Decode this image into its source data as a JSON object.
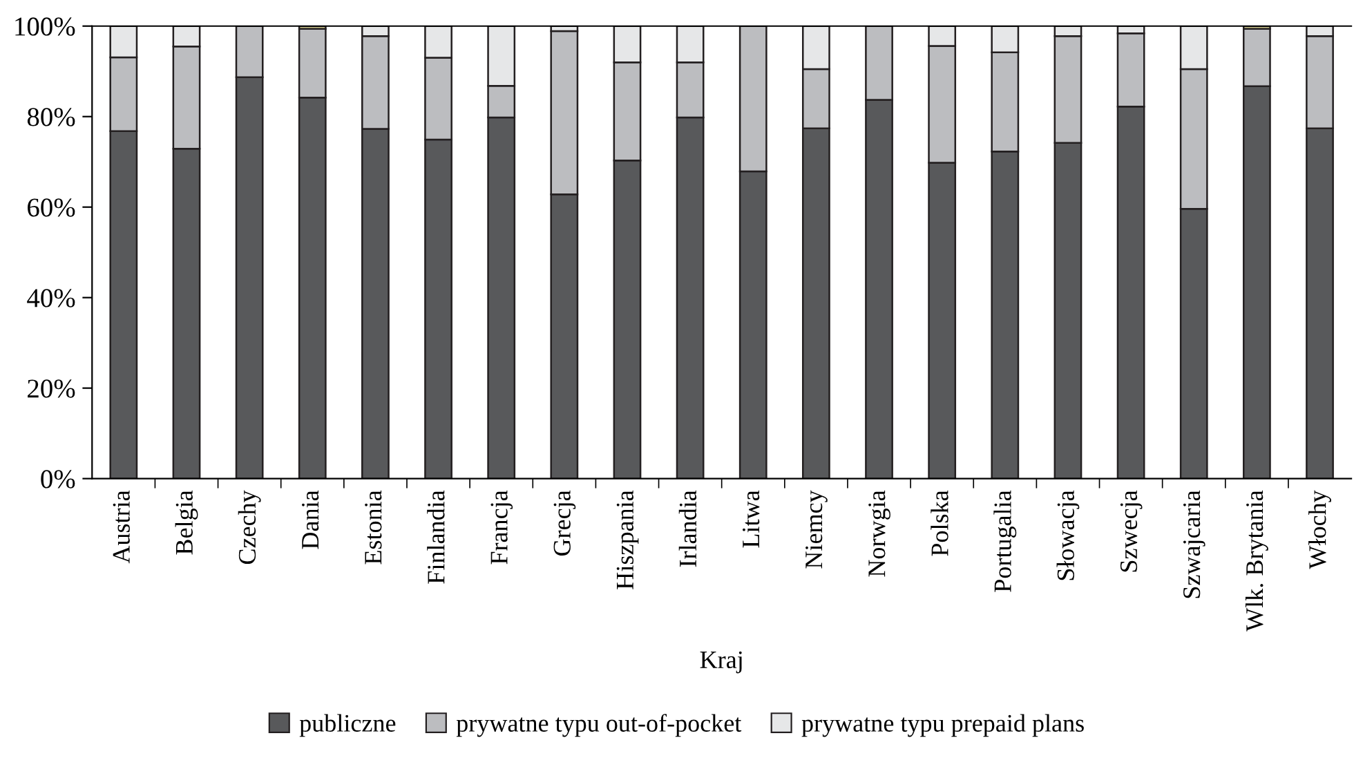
{
  "chart_data": {
    "type": "bar",
    "stacked": true,
    "xlabel": "Kraj",
    "categories": [
      "Austria",
      "Belgia",
      "Czechy",
      "Dania",
      "Estonia",
      "Finlandia",
      "Francja",
      "Grecja",
      "Hiszpania",
      "Irlandia",
      "Litwa",
      "Niemcy",
      "Norwgia",
      "Polska",
      "Portugalia",
      "Słowacja",
      "Szwecja",
      "Szwajcaria",
      "Wlk. Brytania",
      "Włochy"
    ],
    "series": [
      {
        "name": "publiczne",
        "color": "#58595b",
        "values": [
          76.8,
          72.9,
          88.7,
          84.2,
          77.3,
          74.9,
          79.8,
          62.8,
          70.3,
          79.8,
          67.9,
          77.4,
          83.7,
          69.8,
          72.3,
          74.2,
          82.2,
          59.6,
          86.7,
          77.4
        ]
      },
      {
        "name": "prywatne typu out-of-pocket",
        "color": "#bcbdc0",
        "values": [
          16.3,
          22.6,
          11.3,
          15.2,
          20.5,
          18.1,
          7.0,
          36.1,
          21.7,
          12.2,
          32.1,
          13.1,
          16.3,
          25.8,
          21.9,
          23.6,
          16.2,
          30.9,
          12.7,
          20.4
        ]
      },
      {
        "name": "prywatne typu prepaid plans",
        "color": "#e6e7e8",
        "values": [
          6.9,
          4.5,
          null,
          null,
          2.2,
          7.0,
          13.2,
          1.1,
          8.0,
          8.0,
          null,
          9.5,
          null,
          4.4,
          5.8,
          2.2,
          1.6,
          9.5,
          null,
          2.2
        ]
      },
      {
        "color": "#c9c28a",
        "values": [
          null,
          null,
          null,
          0.6,
          null,
          null,
          null,
          null,
          null,
          null,
          null,
          null,
          null,
          null,
          null,
          null,
          null,
          null,
          0.6,
          null
        ]
      }
    ],
    "ylim": [
      0,
      100
    ],
    "yticks": [
      {
        "value": 0,
        "label": "0%"
      },
      {
        "value": 20,
        "label": "20%"
      },
      {
        "value": 40,
        "label": "40%"
      },
      {
        "value": 60,
        "label": "60%"
      },
      {
        "value": 80,
        "label": "80%"
      },
      {
        "value": 100,
        "label": "100%"
      }
    ],
    "grid": false,
    "legend": "bottom"
  }
}
